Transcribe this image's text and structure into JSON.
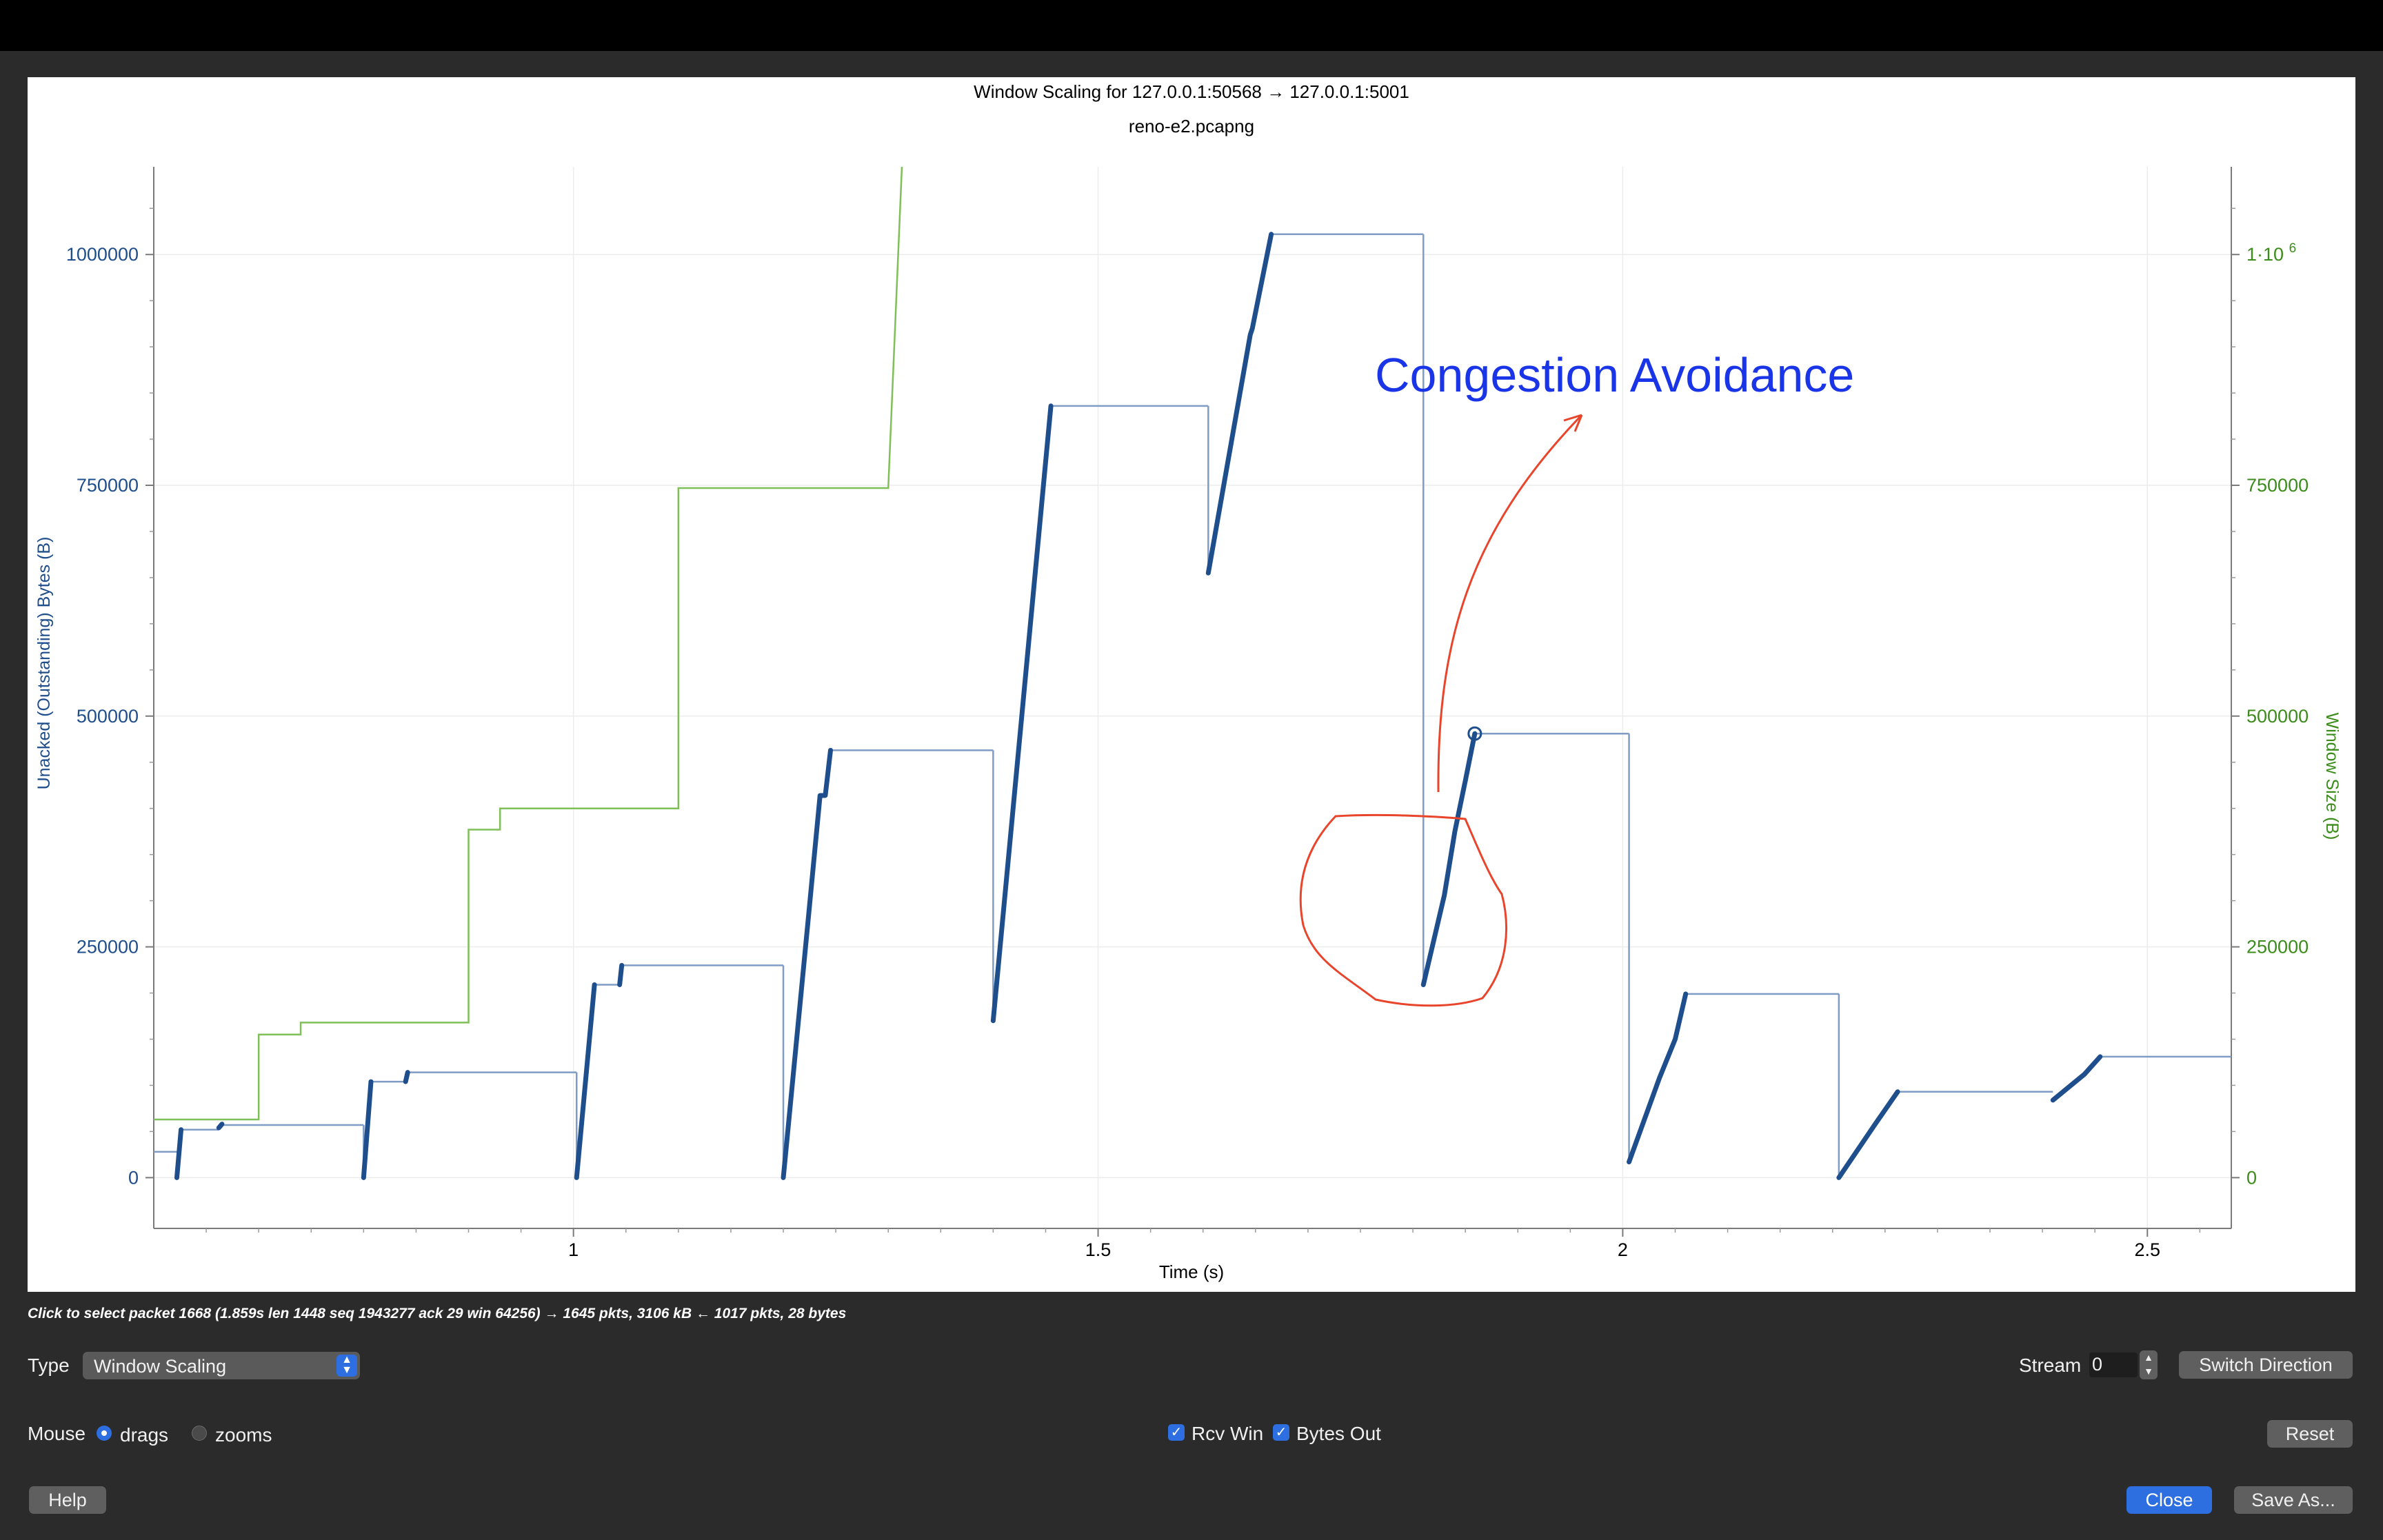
{
  "window": {
    "titlebar": ""
  },
  "chart_data": {
    "type": "line",
    "title": "Window Scaling for 127.0.0.1:50568 → 127.0.0.1:5001",
    "subtitle": "reno-e2.pcapng",
    "xlabel": "Time (s)",
    "ylabel_left": "Unacked (Outstanding) Bytes (B)",
    "ylabel_right": "Window Size (B)",
    "xlim": [
      0.6,
      2.58
    ],
    "ylim_left": [
      -55000,
      1095000
    ],
    "ylim_right": [
      -55000,
      1095000
    ],
    "x_ticks": [
      "1",
      "1.5",
      "2",
      "2.5"
    ],
    "x_tick_values": [
      1,
      1.5,
      2,
      2.5
    ],
    "y_ticks_left": [
      "0",
      "250000",
      "500000",
      "750000",
      "1000000"
    ],
    "y_tick_values": [
      0,
      250000,
      500000,
      750000,
      1000000
    ],
    "y_ticks_right": [
      "0",
      "250000",
      "500000",
      "750000",
      "1·10"
    ],
    "y_tick_right_sup": "6",
    "grid": true,
    "colors": {
      "bytes_out": "#1f4e8c",
      "bytes_out_thin": "#7f9cc4",
      "rcv_win": "#7fbf58",
      "right_axis_text": "#3c8c1c",
      "left_axis_text": "#1f4e8c",
      "annotation_text": "#1a35e8",
      "annotation_ink": "#e8452c"
    },
    "series": [
      {
        "name": "Rcv Win",
        "step": true,
        "x": [
          0.6,
          0.7,
          0.7,
          0.74,
          0.74,
          0.9,
          0.9,
          0.93,
          0.93,
          1.1,
          1.1,
          1.3,
          1.3,
          1.313
        ],
        "y": [
          63000,
          63000,
          155000,
          155000,
          168000,
          168000,
          377000,
          377000,
          400000,
          400000,
          747000,
          747000,
          747000,
          1095000
        ]
      },
      {
        "name": "Bytes Out",
        "thin_segments": [
          {
            "x": [
              0.6,
              0.622
            ],
            "y": [
              28000,
              28000
            ]
          },
          {
            "x": [
              0.626,
              0.662
            ],
            "y": [
              52000,
              52000
            ]
          },
          {
            "x": [
              0.665,
              0.8
            ],
            "y": [
              57000,
              57000
            ]
          },
          {
            "x": [
              0.8,
              0.8
            ],
            "y": [
              57000,
              0
            ]
          },
          {
            "x": [
              0.807,
              0.84
            ],
            "y": [
              104000,
              104000
            ]
          },
          {
            "x": [
              0.842,
              1.003
            ],
            "y": [
              114000,
              114000
            ]
          },
          {
            "x": [
              1.003,
              1.003
            ],
            "y": [
              114000,
              0
            ]
          },
          {
            "x": [
              1.02,
              1.044
            ],
            "y": [
              209000,
              209000
            ]
          },
          {
            "x": [
              1.046,
              1.2
            ],
            "y": [
              230000,
              230000
            ]
          },
          {
            "x": [
              1.2,
              1.2
            ],
            "y": [
              230000,
              0
            ]
          },
          {
            "x": [
              1.245,
              1.4
            ],
            "y": [
              463000,
              463000
            ]
          },
          {
            "x": [
              1.4,
              1.4
            ],
            "y": [
              463000,
              170000
            ]
          },
          {
            "x": [
              1.455,
              1.605
            ],
            "y": [
              836000,
              836000
            ]
          },
          {
            "x": [
              1.605,
              1.605
            ],
            "y": [
              836000,
              655000
            ]
          },
          {
            "x": [
              1.665,
              1.81
            ],
            "y": [
              1022000,
              1022000
            ]
          },
          {
            "x": [
              1.81,
              1.81
            ],
            "y": [
              1022000,
              209000
            ]
          },
          {
            "x": [
              1.859,
              2.006
            ],
            "y": [
              481000,
              481000
            ]
          },
          {
            "x": [
              2.006,
              2.006
            ],
            "y": [
              481000,
              17000
            ]
          },
          {
            "x": [
              2.06,
              2.206
            ],
            "y": [
              199000,
              199000
            ]
          },
          {
            "x": [
              2.206,
              2.206
            ],
            "y": [
              199000,
              0
            ]
          },
          {
            "x": [
              2.262,
              2.41
            ],
            "y": [
              93000,
              93000
            ]
          },
          {
            "x": [
              2.455,
              2.58
            ],
            "y": [
              131000,
              131000
            ]
          }
        ],
        "thick_segments": [
          {
            "x": [
              0.622,
              0.626
            ],
            "y": [
              0,
              52000
            ]
          },
          {
            "x": [
              0.662,
              0.665
            ],
            "y": [
              54000,
              58000
            ]
          },
          {
            "x": [
              0.8,
              0.807
            ],
            "y": [
              0,
              104000
            ]
          },
          {
            "x": [
              0.84,
              0.842
            ],
            "y": [
              104000,
              114000
            ]
          },
          {
            "x": [
              1.003,
              1.02
            ],
            "y": [
              0,
              209000
            ]
          },
          {
            "x": [
              1.044,
              1.046
            ],
            "y": [
              209000,
              230000
            ]
          },
          {
            "x": [
              1.2,
              1.225,
              1.235,
              1.24,
              1.245
            ],
            "y": [
              0,
              295000,
              414000,
              414000,
              463000
            ]
          },
          {
            "x": [
              1.4,
              1.455
            ],
            "y": [
              170000,
              836000
            ]
          },
          {
            "x": [
              1.605,
              1.645,
              1.647,
              1.665
            ],
            "y": [
              655000,
              913000,
              920000,
              1022000
            ]
          },
          {
            "x": [
              1.81,
              1.83,
              1.84,
              1.85,
              1.859
            ],
            "y": [
              209000,
              306000,
              375000,
              430000,
              481000
            ]
          },
          {
            "x": [
              2.006,
              2.035,
              2.05,
              2.06
            ],
            "y": [
              17000,
              108000,
              150000,
              199000
            ]
          },
          {
            "x": [
              2.206,
              2.24,
              2.262
            ],
            "y": [
              0,
              57000,
              93000
            ]
          },
          {
            "x": [
              2.41,
              2.44,
              2.455
            ],
            "y": [
              84000,
              112000,
              131000
            ]
          }
        ],
        "marker": {
          "x": 1.859,
          "y": 481000
        }
      }
    ],
    "annotations": [
      {
        "text": "Congestion Avoidance"
      }
    ]
  },
  "status": "Click to select packet 1668 (1.859s len 1448 seq 1943277 ack 29 win 64256) → 1645 pkts, 3106 kB ← 1017 pkts, 28 bytes",
  "controls": {
    "type_label": "Type",
    "type_value": "Window Scaling",
    "stream_label": "Stream",
    "stream_value": "0",
    "switch_direction": "Switch Direction",
    "mouse_label": "Mouse",
    "drags": "drags",
    "zooms": "zooms",
    "rcv_win": "Rcv Win",
    "bytes_out": "Bytes Out",
    "reset": "Reset",
    "help": "Help",
    "close": "Close",
    "save_as": "Save As..."
  }
}
